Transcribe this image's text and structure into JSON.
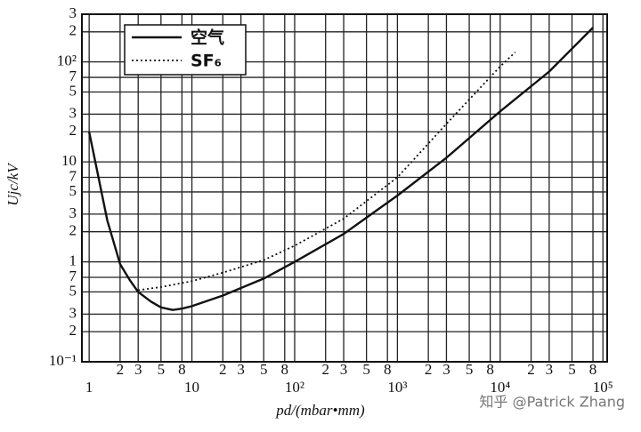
{
  "chart_data": {
    "type": "line",
    "xlabel": "pd/(mbar•mm)",
    "ylabel": "Ujc/kV",
    "watermark": "知乎 @Patrick Zhang",
    "xscale": "log",
    "yscale": "log",
    "grid": true,
    "legend": "upper left",
    "xlim": [
      0.85,
      110000
    ],
    "ylim": [
      0.1,
      300
    ],
    "xticks": [
      1,
      2,
      3,
      5,
      8,
      10,
      {
        "value": 20,
        "label": "2"
      },
      {
        "value": 30,
        "label": "3"
      },
      {
        "value": 50,
        "label": "5"
      },
      {
        "value": 80,
        "label": "8"
      },
      {
        "value": 100,
        "label": "10²"
      },
      {
        "value": 200,
        "label": "2"
      },
      {
        "value": 300,
        "label": "3"
      },
      {
        "value": 500,
        "label": "5"
      },
      {
        "value": 800,
        "label": "8"
      },
      {
        "value": 1000,
        "label": "10³"
      },
      {
        "value": 2000,
        "label": "2"
      },
      {
        "value": 3000,
        "label": "3"
      },
      {
        "value": 5000,
        "label": "5"
      },
      {
        "value": 8000,
        "label": "8"
      },
      {
        "value": 10000,
        "label": "10⁴"
      },
      {
        "value": 20000,
        "label": "2"
      },
      {
        "value": 30000,
        "label": "3"
      },
      {
        "value": 50000,
        "label": "5"
      },
      {
        "value": 80000,
        "label": "8"
      },
      {
        "value": 100000,
        "label": "10⁵"
      }
    ],
    "yticks": [
      {
        "value": 0.1,
        "label": "10⁻¹"
      },
      {
        "value": 0.2,
        "label": "2"
      },
      {
        "value": 0.3,
        "label": "3"
      },
      {
        "value": 0.5,
        "label": "5"
      },
      {
        "value": 0.7,
        "label": "7"
      },
      1,
      2,
      3,
      5,
      7,
      10,
      {
        "value": 20,
        "label": "2"
      },
      {
        "value": 30,
        "label": "3"
      },
      {
        "value": 50,
        "label": "5"
      },
      {
        "value": 70,
        "label": "7"
      },
      {
        "value": 100,
        "label": "10²"
      },
      {
        "value": 200,
        "label": "2"
      },
      {
        "value": 300,
        "label": "3"
      }
    ],
    "series": [
      {
        "name": "空气",
        "color": "#111111",
        "line_style": "solid",
        "x": [
          1,
          1.2,
          1.5,
          2,
          2.5,
          3,
          4,
          5,
          6.5,
          8,
          10,
          20,
          50,
          100,
          300,
          1000,
          3000,
          10000,
          30000,
          80000
        ],
        "values": [
          20,
          8,
          2.6,
          0.95,
          0.65,
          0.5,
          0.4,
          0.35,
          0.33,
          0.34,
          0.36,
          0.46,
          0.68,
          1,
          1.9,
          4.6,
          11,
          32,
          80,
          220
        ]
      },
      {
        "name": "SF₆",
        "color": "#111111",
        "line_style": "dotted",
        "x": [
          3,
          5,
          10,
          20,
          50,
          100,
          300,
          1000,
          3000,
          10000,
          14000
        ],
        "values": [
          0.52,
          0.56,
          0.64,
          0.78,
          1.04,
          1.45,
          2.7,
          7,
          24,
          90,
          125
        ]
      }
    ]
  }
}
